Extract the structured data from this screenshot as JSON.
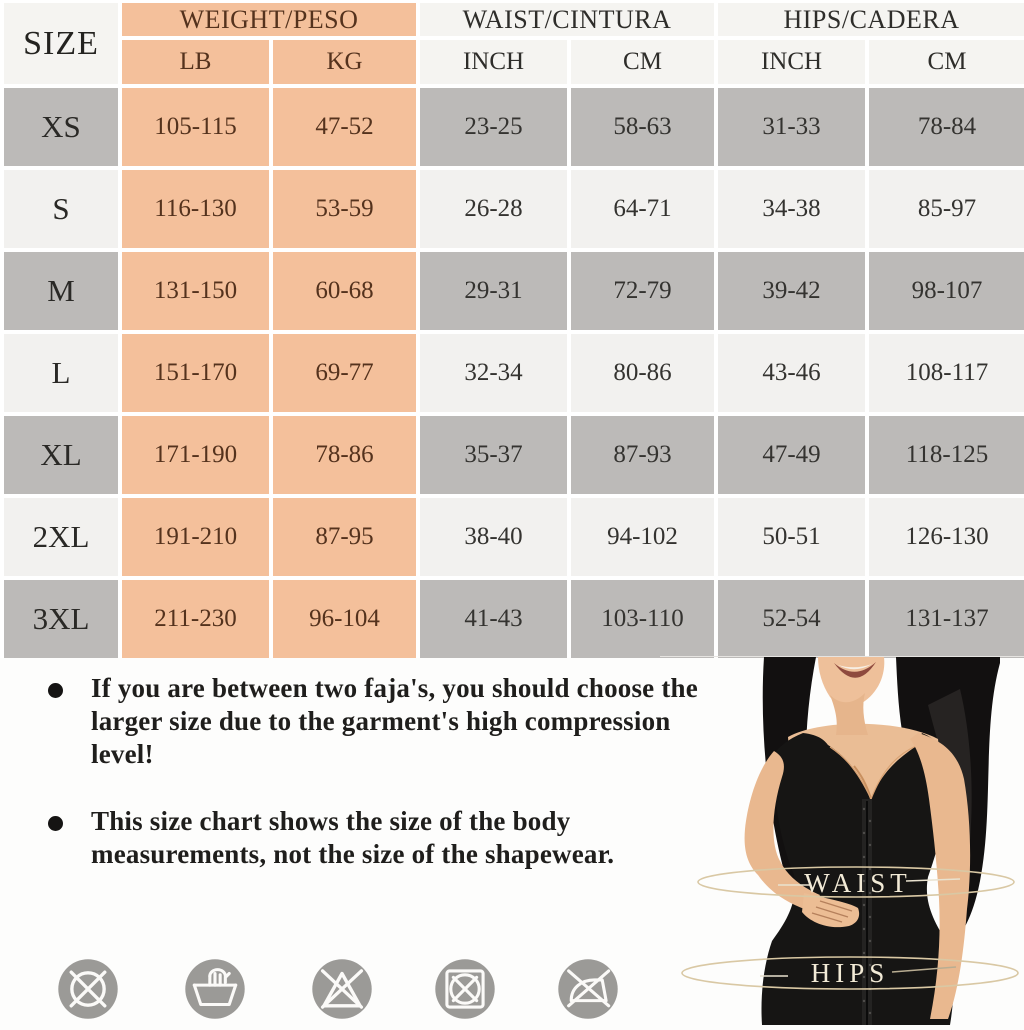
{
  "colors": {
    "peach": "#f4c09b",
    "row_gray": "#bcbab8",
    "row_light": "#f2f1ef",
    "header_light": "#f5f4f1",
    "weight_text": "#54321d",
    "text_dark": "#2e2d2a",
    "care_icon_gray": "#9b9a97",
    "figure_label_cream": "#f2ead6",
    "measure_line_tan": "#d9c8a4"
  },
  "table": {
    "size_header": "SIZE",
    "groups": [
      {
        "label": "WEIGHT/PESO",
        "sub": [
          "LB",
          "KG"
        ]
      },
      {
        "label": "WAIST/CINTURA",
        "sub": [
          "INCH",
          "CM"
        ]
      },
      {
        "label": "HIPS/CADERA",
        "sub": [
          "INCH",
          "CM"
        ]
      }
    ],
    "rows": [
      {
        "size": "XS",
        "values": [
          "105-115",
          "47-52",
          "23-25",
          "58-63",
          "31-33",
          "78-84"
        ]
      },
      {
        "size": "S",
        "values": [
          "116-130",
          "53-59",
          "26-28",
          "64-71",
          "34-38",
          "85-97"
        ]
      },
      {
        "size": "M",
        "values": [
          "131-150",
          "60-68",
          "29-31",
          "72-79",
          "39-42",
          "98-107"
        ]
      },
      {
        "size": "L",
        "values": [
          "151-170",
          "69-77",
          "32-34",
          "80-86",
          "43-46",
          "108-117"
        ]
      },
      {
        "size": "XL",
        "values": [
          "171-190",
          "78-86",
          "35-37",
          "87-93",
          "47-49",
          "118-125"
        ]
      },
      {
        "size": "2XL",
        "values": [
          "191-210",
          "87-95",
          "38-40",
          "94-102",
          "50-51",
          "126-130"
        ]
      },
      {
        "size": "3XL",
        "values": [
          "211-230",
          "96-104",
          "41-43",
          "103-110",
          "52-54",
          "131-137"
        ]
      }
    ]
  },
  "notes": [
    "If you are between two faja's, you should choose the larger size due to the garment's high compression level!",
    "This size chart shows the size of the body measurements, not the size of the shapewear."
  ],
  "figure_labels": {
    "waist": "WAIST",
    "hips": "HIPS"
  },
  "care_icons": [
    "do-not-dry-clean",
    "hand-wash",
    "do-not-bleach",
    "do-not-tumble-dry",
    "do-not-iron"
  ]
}
